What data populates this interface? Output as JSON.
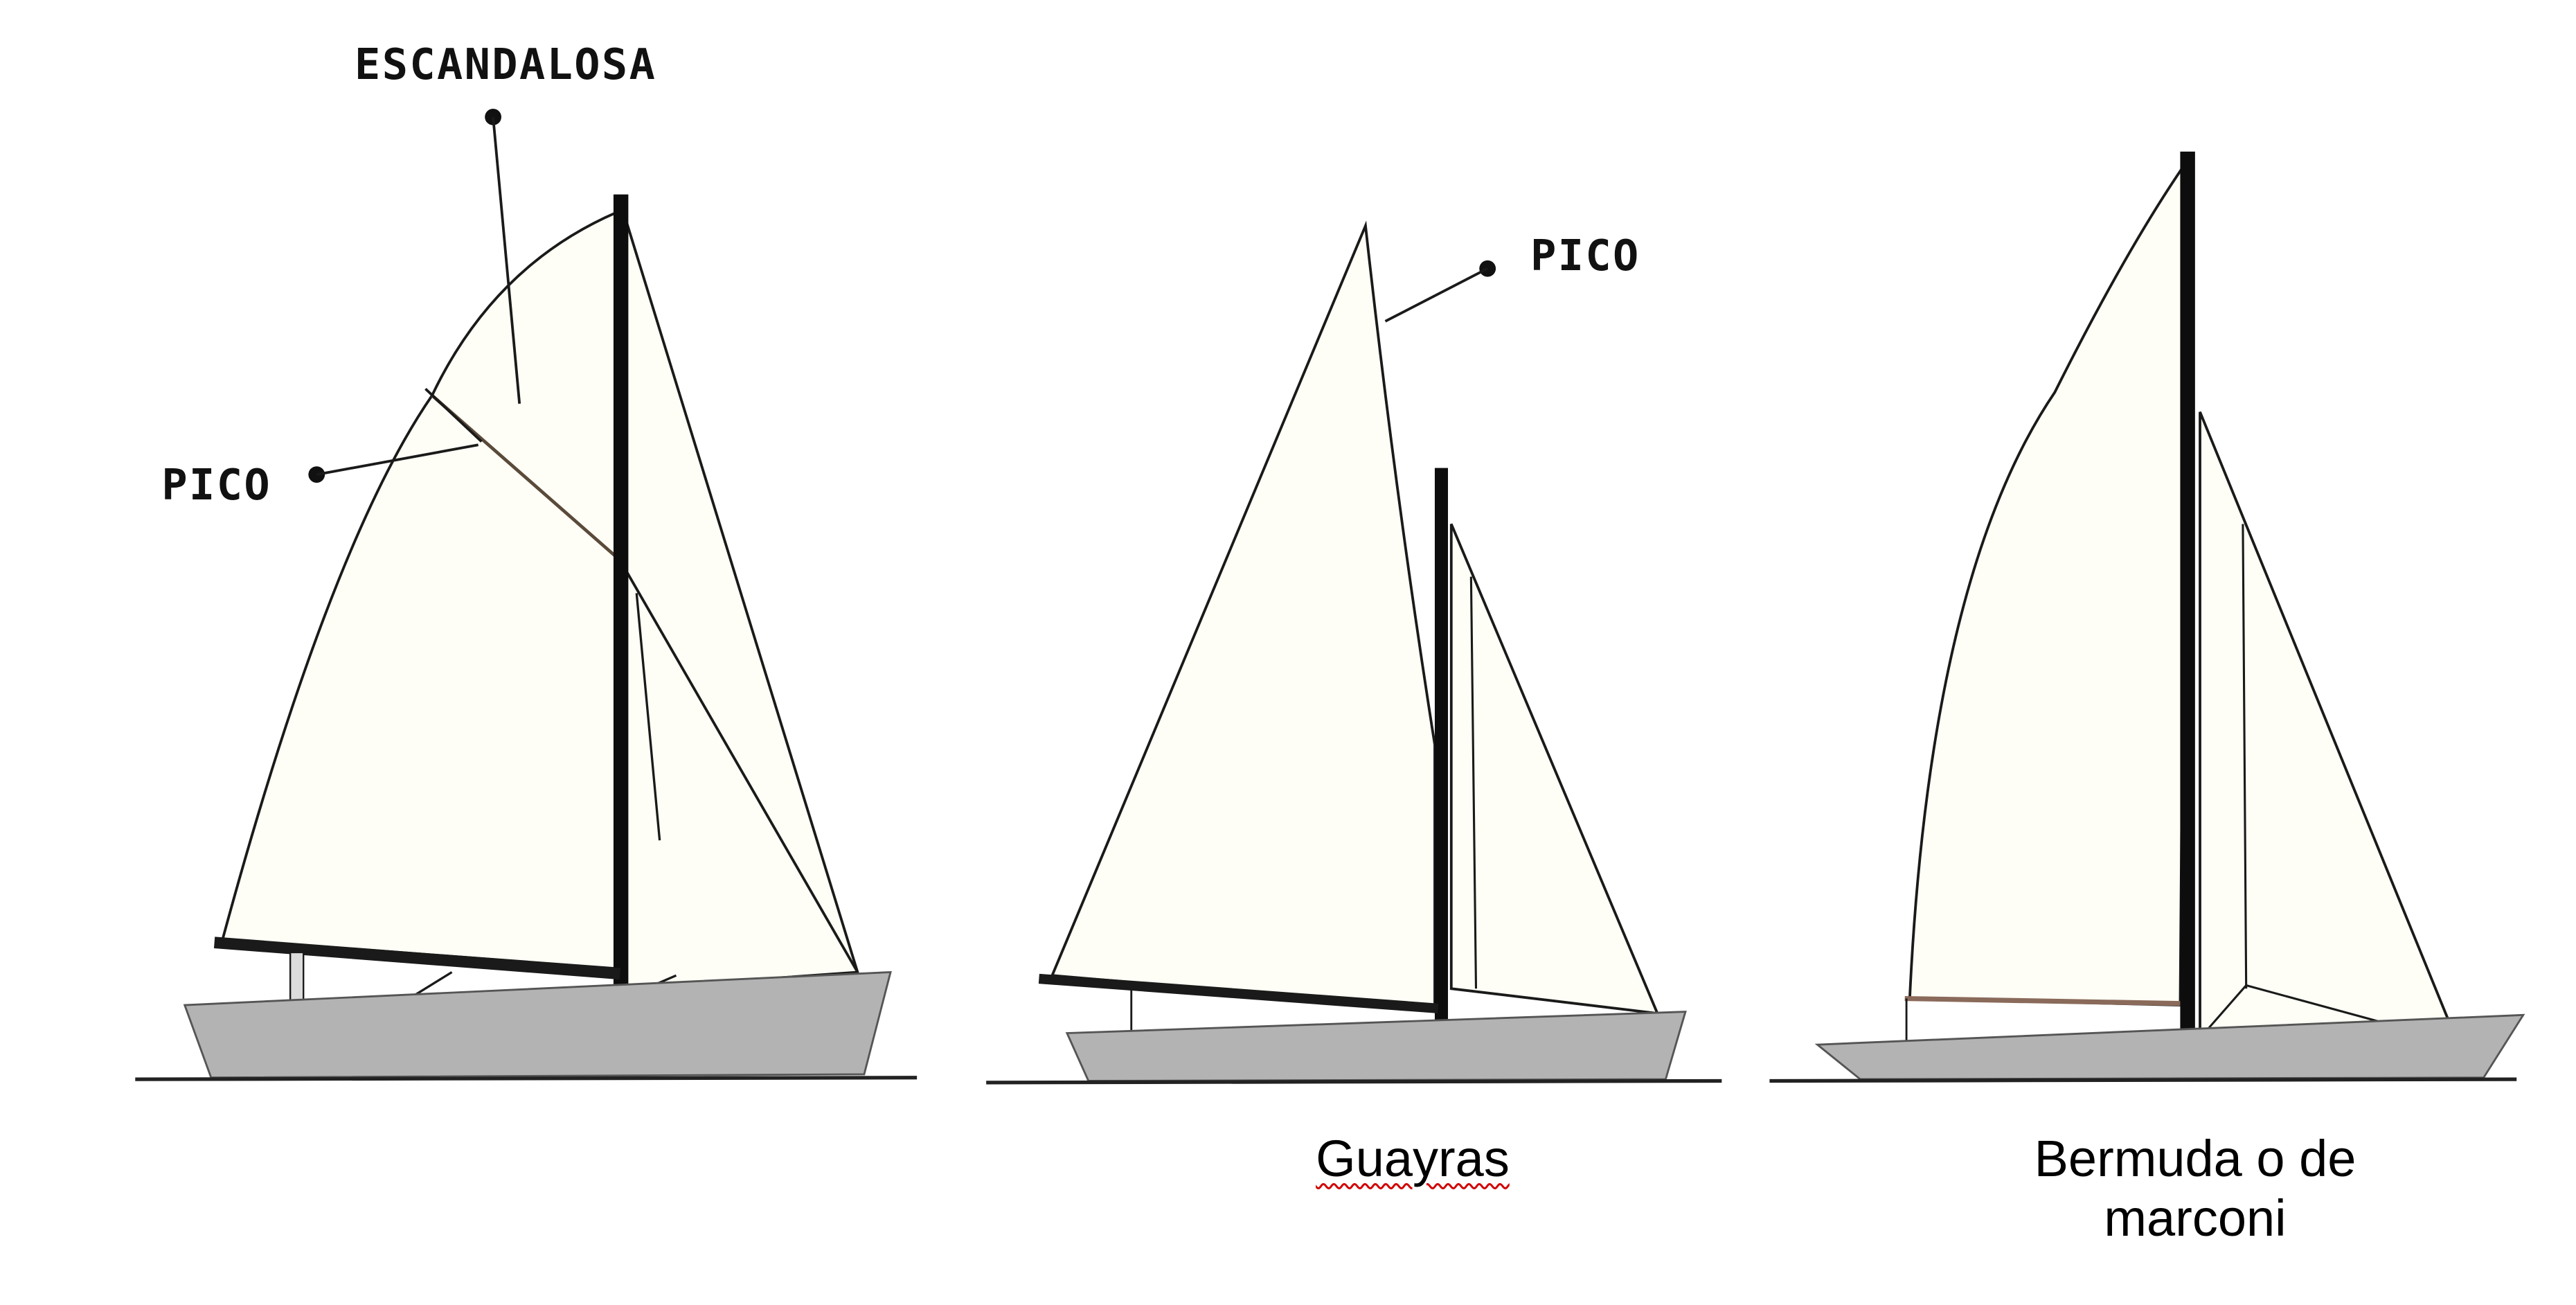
{
  "colors": {
    "sail_fill": "#fefef6",
    "hull_fill": "#b3b3b3",
    "line": "#1a1a1a",
    "waterline": "#222222",
    "spell_underline": "#d10000"
  },
  "boat1": {
    "label_escandalosa": "ESCANDALOSA",
    "label_pico": "PICO"
  },
  "boat2": {
    "label_pico": "PICO",
    "caption": "Guayras"
  },
  "boat3": {
    "caption_line1": "Bermuda o de",
    "caption_line2": "marconi"
  }
}
